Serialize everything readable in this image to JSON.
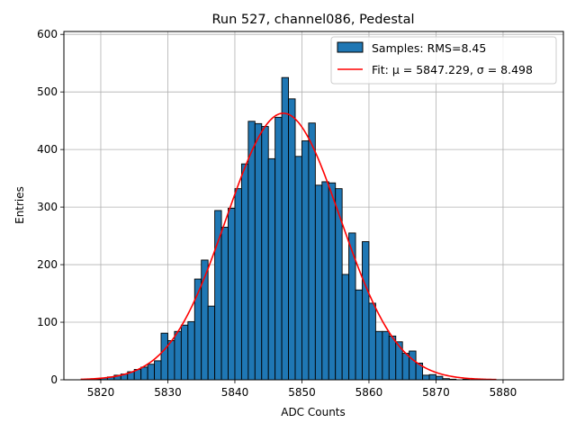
{
  "chart_data": {
    "type": "bar",
    "title": "Run 527, channel086, Pedestal",
    "xlabel": "ADC Counts",
    "ylabel": "Entries",
    "xlim": [
      5814.5,
      5889
    ],
    "ylim": [
      0,
      605
    ],
    "xticks": [
      5820,
      5830,
      5840,
      5850,
      5860,
      5870,
      5880
    ],
    "yticks": [
      0,
      100,
      200,
      300,
      400,
      500,
      600
    ],
    "grid": true,
    "legend_position": "top-right",
    "colors": {
      "bars": "#1f77b4",
      "fit": "#ff0000"
    },
    "histogram": {
      "name": "Samples: RMS=8.45",
      "bin_start": 5818,
      "bin_width": 1,
      "counts": [
        0,
        1,
        3,
        5,
        8,
        10,
        14,
        18,
        22,
        27,
        33,
        81,
        68,
        84,
        95,
        101,
        175,
        208,
        128,
        294,
        265,
        298,
        332,
        375,
        449,
        445,
        440,
        384,
        456,
        525,
        488,
        388,
        415,
        446,
        338,
        344,
        342,
        332,
        183,
        255,
        156,
        240,
        133,
        84,
        84,
        76,
        66,
        46,
        50,
        29,
        8,
        9,
        6,
        2,
        1,
        0,
        1,
        0
      ]
    },
    "fit": {
      "name": "Fit: μ = 5847.229, σ = 8.498",
      "mu": 5847.229,
      "sigma": 8.498,
      "amplitude": 463,
      "x_range": [
        5817,
        5879
      ]
    }
  }
}
